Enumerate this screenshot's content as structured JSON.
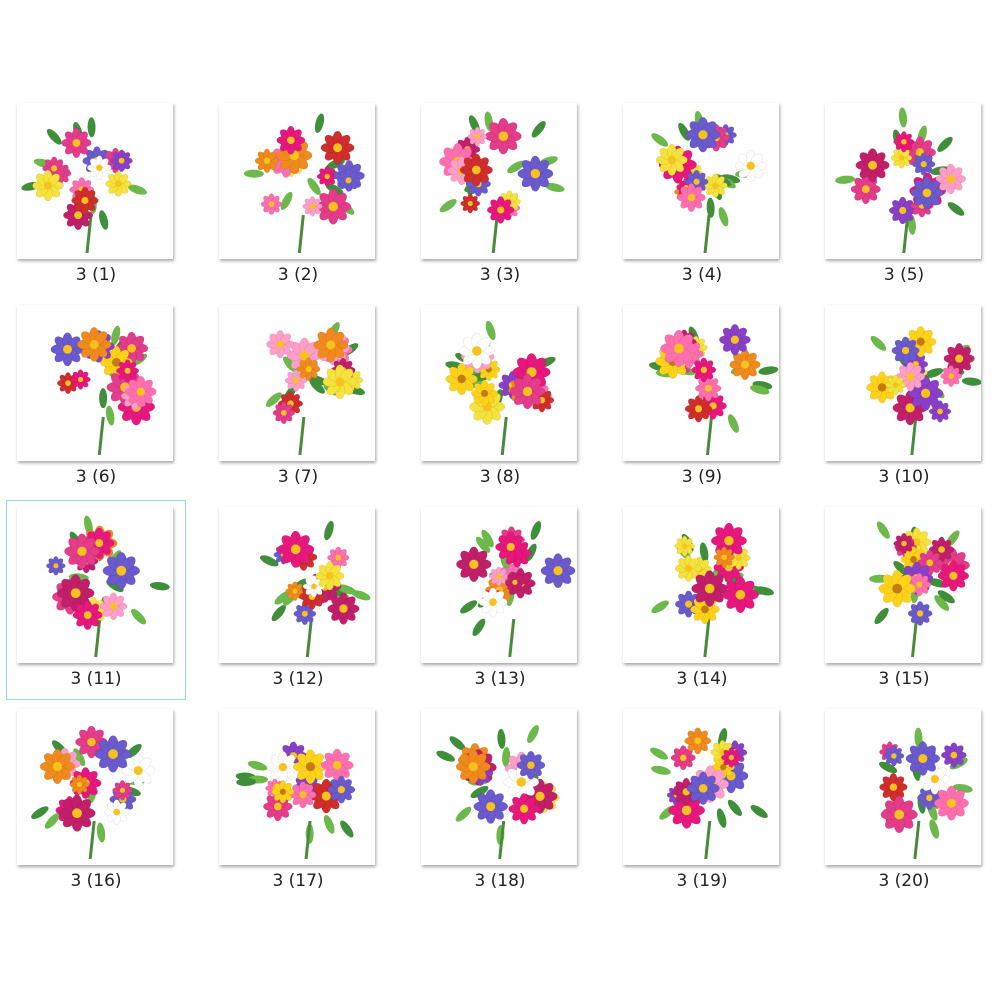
{
  "items": [
    "3 (1)",
    "3 (2)",
    "3 (3)",
    "3 (4)",
    "3 (5)",
    "3 (6)",
    "3 (7)",
    "3 (8)",
    "3 (9)",
    "3 (10)",
    "3 (11)",
    "3 (12)",
    "3 (13)",
    "3 (14)",
    "3 (15)",
    "3 (16)",
    "3 (17)",
    "3 (18)",
    "3 (19)",
    "3 (20)"
  ]
}
